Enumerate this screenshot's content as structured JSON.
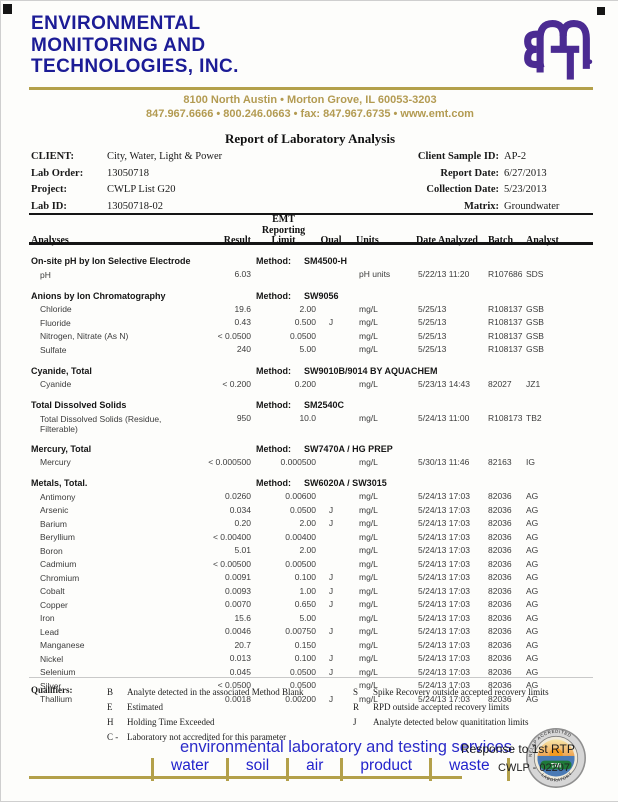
{
  "colors": {
    "navy": "#1c1c96",
    "gold": "#b3a04a",
    "gold_text": "#b39b52",
    "logo_purple": "#4b2b92",
    "footer_blue": "#2a2ac8"
  },
  "header": {
    "company_lines": [
      "ENVIRONMENTAL",
      "MONITORING AND",
      "TECHNOLOGIES, INC."
    ],
    "address_line1": "8100 North Austin • Morton Grove, IL 60053-3203",
    "address_line2": "847.967.6666 • 800.246.0663 • fax: 847.967.6735 • www.emt.com"
  },
  "report": {
    "title": "Report of Laboratory Analysis",
    "info_rows": [
      {
        "label": "CLIENT:",
        "value": "City, Water, Light & Power",
        "r_label": "Client Sample ID:",
        "r_value": "AP-2"
      },
      {
        "label": "Lab Order:",
        "value": "13050718",
        "r_label": "Report Date:",
        "r_value": "6/27/2013"
      },
      {
        "label": "Project:",
        "value": "CWLP List G20",
        "r_label": "Collection Date:",
        "r_value": "5/23/2013"
      },
      {
        "label": "Lab ID:",
        "value": "13050718-02",
        "r_label": "Matrix:",
        "r_value": "Groundwater"
      }
    ]
  },
  "table": {
    "method_label": "Method:",
    "headers": {
      "analyses": "Analyses",
      "result": "Result",
      "limit": "EMT\nReporting\nLimit",
      "qual": "Qual",
      "units": "Units",
      "date": "Date Analyzed",
      "batch": "Batch",
      "analyst": "Analyst"
    },
    "sections": [
      {
        "name": "On-site pH by Ion Selective Electrode",
        "method": "SM4500-H",
        "rows": [
          {
            "analyte": "pH",
            "result": "6.03",
            "limit": "",
            "qual": "",
            "units": "pH units",
            "date": "5/22/13 11:20",
            "batch": "R107686",
            "analyst": "SDS"
          }
        ]
      },
      {
        "name": "Anions by Ion Chromatography",
        "method": "SW9056",
        "rows": [
          {
            "analyte": "Chloride",
            "result": "19.6",
            "limit": "2.00",
            "qual": "",
            "units": "mg/L",
            "date": "5/25/13",
            "batch": "R108137",
            "analyst": "GSB"
          },
          {
            "analyte": "Fluoride",
            "result": "0.43",
            "limit": "0.500",
            "qual": "J",
            "units": "mg/L",
            "date": "5/25/13",
            "batch": "R108137",
            "analyst": "GSB"
          },
          {
            "analyte": "Nitrogen, Nitrate (As N)",
            "result": "< 0.0500",
            "limit": "0.0500",
            "qual": "",
            "units": "mg/L",
            "date": "5/25/13",
            "batch": "R108137",
            "analyst": "GSB"
          },
          {
            "analyte": "Sulfate",
            "result": "240",
            "limit": "5.00",
            "qual": "",
            "units": "mg/L",
            "date": "5/25/13",
            "batch": "R108137",
            "analyst": "GSB"
          }
        ]
      },
      {
        "name": "Cyanide, Total",
        "method": "SW9010B/9014 BY AQUACHEM",
        "rows": [
          {
            "analyte": "Cyanide",
            "result": "< 0.200",
            "limit": "0.200",
            "qual": "",
            "units": "mg/L",
            "date": "5/23/13 14:43",
            "batch": "82027",
            "analyst": "JZ1"
          }
        ]
      },
      {
        "name": "Total Dissolved Solids",
        "method": "SM2540C",
        "rows": [
          {
            "analyte": "Total Dissolved Solids (Residue, Filterable)",
            "result": "950",
            "limit": "10.0",
            "qual": "",
            "units": "mg/L",
            "date": "5/24/13 11:00",
            "batch": "R108173",
            "analyst": "TB2"
          }
        ]
      },
      {
        "name": "Mercury, Total",
        "method": "SW7470A / HG PREP",
        "rows": [
          {
            "analyte": "Mercury",
            "result": "< 0.000500",
            "limit": "0.000500",
            "qual": "",
            "units": "mg/L",
            "date": "5/30/13 11:46",
            "batch": "82163",
            "analyst": "IG"
          }
        ]
      },
      {
        "name": "Metals, Total.",
        "method": "SW6020A / SW3015",
        "rows": [
          {
            "analyte": "Antimony",
            "result": "0.0260",
            "limit": "0.00600",
            "qual": "",
            "units": "mg/L",
            "date": "5/24/13 17:03",
            "batch": "82036",
            "analyst": "AG"
          },
          {
            "analyte": "Arsenic",
            "result": "0.034",
            "limit": "0.0500",
            "qual": "J",
            "units": "mg/L",
            "date": "5/24/13 17:03",
            "batch": "82036",
            "analyst": "AG"
          },
          {
            "analyte": "Barium",
            "result": "0.20",
            "limit": "2.00",
            "qual": "J",
            "units": "mg/L",
            "date": "5/24/13 17:03",
            "batch": "82036",
            "analyst": "AG"
          },
          {
            "analyte": "Beryllium",
            "result": "< 0.00400",
            "limit": "0.00400",
            "qual": "",
            "units": "mg/L",
            "date": "5/24/13 17:03",
            "batch": "82036",
            "analyst": "AG"
          },
          {
            "analyte": "Boron",
            "result": "5.01",
            "limit": "2.00",
            "qual": "",
            "units": "mg/L",
            "date": "5/24/13 17:03",
            "batch": "82036",
            "analyst": "AG"
          },
          {
            "analyte": "Cadmium",
            "result": "< 0.00500",
            "limit": "0.00500",
            "qual": "",
            "units": "mg/L",
            "date": "5/24/13 17:03",
            "batch": "82036",
            "analyst": "AG"
          },
          {
            "analyte": "Chromium",
            "result": "0.0091",
            "limit": "0.100",
            "qual": "J",
            "units": "mg/L",
            "date": "5/24/13 17:03",
            "batch": "82036",
            "analyst": "AG"
          },
          {
            "analyte": "Cobalt",
            "result": "0.0093",
            "limit": "1.00",
            "qual": "J",
            "units": "mg/L",
            "date": "5/24/13 17:03",
            "batch": "82036",
            "analyst": "AG"
          },
          {
            "analyte": "Copper",
            "result": "0.0070",
            "limit": "0.650",
            "qual": "J",
            "units": "mg/L",
            "date": "5/24/13 17:03",
            "batch": "82036",
            "analyst": "AG"
          },
          {
            "analyte": "Iron",
            "result": "15.6",
            "limit": "5.00",
            "qual": "",
            "units": "mg/L",
            "date": "5/24/13 17:03",
            "batch": "82036",
            "analyst": "AG"
          },
          {
            "analyte": "Lead",
            "result": "0.0046",
            "limit": "0.00750",
            "qual": "J",
            "units": "mg/L",
            "date": "5/24/13 17:03",
            "batch": "82036",
            "analyst": "AG"
          },
          {
            "analyte": "Manganese",
            "result": "20.7",
            "limit": "0.150",
            "qual": "",
            "units": "mg/L",
            "date": "5/24/13 17:03",
            "batch": "82036",
            "analyst": "AG"
          },
          {
            "analyte": "Nickel",
            "result": "0.013",
            "limit": "0.100",
            "qual": "J",
            "units": "mg/L",
            "date": "5/24/13 17:03",
            "batch": "82036",
            "analyst": "AG"
          },
          {
            "analyte": "Selenium",
            "result": "0.045",
            "limit": "0.0500",
            "qual": "J",
            "units": "mg/L",
            "date": "5/24/13 17:03",
            "batch": "82036",
            "analyst": "AG"
          },
          {
            "analyte": "Silver",
            "result": "< 0.0500",
            "limit": "0.0500",
            "qual": "",
            "units": "mg/L",
            "date": "5/24/13 17:03",
            "batch": "82036",
            "analyst": "AG"
          },
          {
            "analyte": "Thallium",
            "result": "0.0018",
            "limit": "0.00200",
            "qual": "J",
            "units": "mg/L",
            "date": "5/24/13 17:03",
            "batch": "82036",
            "analyst": "AG"
          }
        ]
      }
    ]
  },
  "qualifiers": {
    "label": "Qualifiers:",
    "left": [
      {
        "code": "B",
        "text": "Analyte detected in the associated Method Blank"
      },
      {
        "code": "E",
        "text": "Estimated"
      },
      {
        "code": "H",
        "text": "Holding Time Exceeded"
      },
      {
        "code": "C -",
        "text": "Laboratory not accredited for this parameter"
      }
    ],
    "right": [
      {
        "code": "S",
        "text": "Spike Recovery outside accepted recovery limits"
      },
      {
        "code": "R",
        "text": "RPD outside accepted recovery limits"
      },
      {
        "code": "J",
        "text": "Analyte detected below quanititation limits"
      }
    ]
  },
  "footer": {
    "tagline": "environmental laboratory and testing services",
    "services": [
      "water",
      "soil",
      "air",
      "product",
      "waste"
    ],
    "note": "Response to 1st RTP",
    "code": "CWLP - 02207",
    "seal": {
      "arc_top": "NELAP ACCREDITED",
      "arc_bottom": "LABORATORY",
      "band": "TNI"
    }
  }
}
